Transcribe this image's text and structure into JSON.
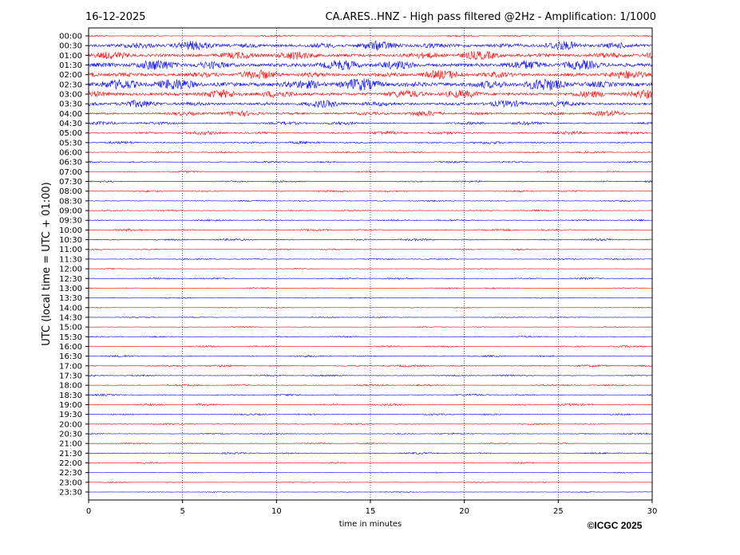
{
  "chart_data": {
    "type": "helicorder",
    "date": "16-12-2025",
    "title": "CA.ARES..HNZ - High pass filtered @2Hz - Amplification: 1/1000",
    "y_label": "UTC (local time = UTC + 01:00)",
    "x_label": "time in minutes",
    "credit": "©ICGC 2025",
    "colors": [
      "#ff0000",
      "#0000ff"
    ],
    "categories": [
      "00:00",
      "00:30",
      "01:00",
      "01:30",
      "02:00",
      "02:30",
      "03:00",
      "03:30",
      "04:00",
      "04:30",
      "05:00",
      "05:30",
      "06:00",
      "06:30",
      "07:00",
      "07:30",
      "08:00",
      "08:30",
      "09:00",
      "09:30",
      "10:00",
      "10:30",
      "11:00",
      "11:30",
      "12:00",
      "12:30",
      "13:00",
      "13:30",
      "14:00",
      "14:30",
      "15:00",
      "15:30",
      "16:00",
      "16:30",
      "17:00",
      "17:30",
      "18:00",
      "18:30",
      "19:00",
      "19:30",
      "20:00",
      "20:30",
      "21:00",
      "21:30",
      "22:00",
      "22:30",
      "23:00",
      "23:30"
    ],
    "values": [
      0.1,
      0.5,
      0.5,
      0.6,
      0.5,
      0.7,
      0.5,
      0.4,
      0.3,
      0.2,
      0.2,
      0.15,
      0.1,
      0.1,
      0.1,
      0.1,
      0.1,
      0.08,
      0.08,
      0.1,
      0.12,
      0.12,
      0.08,
      0.08,
      0.06,
      0.1,
      0.08,
      0.06,
      0.06,
      0.06,
      0.06,
      0.08,
      0.1,
      0.1,
      0.12,
      0.1,
      0.1,
      0.1,
      0.12,
      0.1,
      0.08,
      0.08,
      0.08,
      0.1,
      0.08,
      0.06,
      0.06,
      0.05
    ],
    "xlim": [
      0,
      30
    ],
    "xticks": [
      0,
      5,
      10,
      15,
      20,
      25,
      30
    ],
    "grid": true
  }
}
